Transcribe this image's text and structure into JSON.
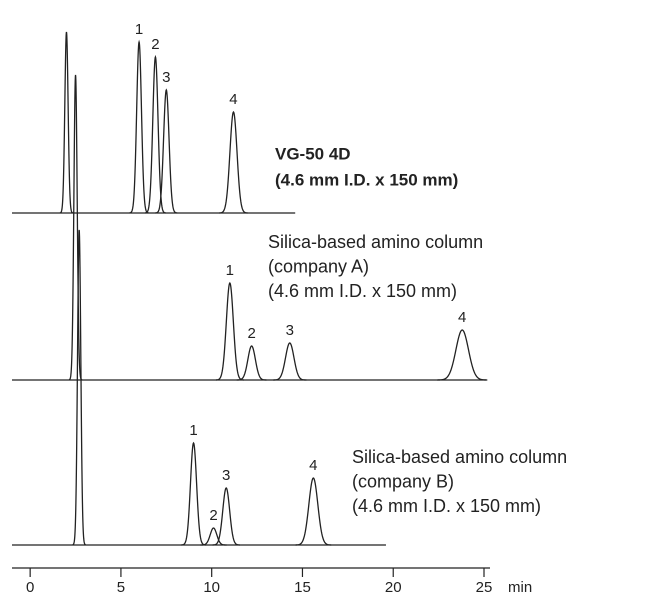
{
  "chart_data": {
    "type": "chromatogram",
    "xlim": [
      -1,
      25
    ],
    "xticks": [
      0,
      5,
      10,
      15,
      20,
      25
    ],
    "xlabel": "min",
    "series": [
      {
        "label": [
          "VG-50 4D",
          "(4.6 mm I.D. x 150 mm)"
        ],
        "bold": true,
        "x_end": 14.6,
        "peaks": [
          {
            "x": 2.0,
            "height": 181,
            "label": null
          },
          {
            "x": 6.0,
            "height": 171,
            "label": "1"
          },
          {
            "x": 6.9,
            "height": 156,
            "label": "2"
          },
          {
            "x": 7.5,
            "height": 123,
            "label": "3"
          },
          {
            "x": 11.2,
            "height": 101,
            "label": "4"
          }
        ]
      },
      {
        "label": [
          "Silica-based amino column",
          "(company A)",
          "(4.6 mm I.D. x 150 mm)"
        ],
        "bold": false,
        "x_end": 25.1,
        "peaks": [
          {
            "x": 2.5,
            "height": 305,
            "label": null
          },
          {
            "x": 11.0,
            "height": 97,
            "label": "1"
          },
          {
            "x": 12.2,
            "height": 34,
            "label": "2"
          },
          {
            "x": 14.3,
            "height": 37,
            "label": "3"
          },
          {
            "x": 23.8,
            "height": 50,
            "label": "4"
          }
        ]
      },
      {
        "label": [
          "Silica-based amino column",
          "(company B)",
          "(4.6 mm I.D. x 150 mm)"
        ],
        "bold": false,
        "x_end": 19.6,
        "peaks": [
          {
            "x": 2.7,
            "height": 315,
            "label": null
          },
          {
            "x": 9.0,
            "height": 102,
            "label": "1"
          },
          {
            "x": 10.1,
            "height": 17,
            "label": "2"
          },
          {
            "x": 10.8,
            "height": 57,
            "label": "3"
          },
          {
            "x": 15.6,
            "height": 67,
            "label": "4"
          }
        ]
      }
    ]
  }
}
